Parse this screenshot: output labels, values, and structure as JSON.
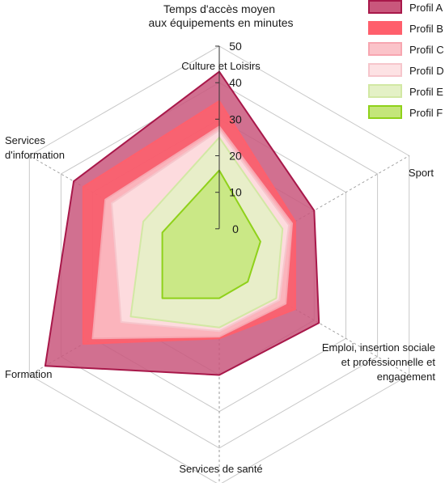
{
  "chart_data": {
    "type": "radar",
    "title_lines": [
      "Temps d'accès moyen",
      "aux équipements en minutes"
    ],
    "axes": [
      {
        "name": "Culture et Loisirs",
        "lines": [
          "Culture et Loisirs"
        ]
      },
      {
        "name": "Sport",
        "lines": [
          "Sport"
        ]
      },
      {
        "name": "Emploi, insertion sociale et professionnelle et engagement",
        "lines": [
          "Emploi, insertion sociale",
          "et professionnelle et",
          "engagement"
        ]
      },
      {
        "name": "Services de santé",
        "lines": [
          "Services de santé"
        ]
      },
      {
        "name": "Formation",
        "lines": [
          "Formation"
        ]
      },
      {
        "name": "Services d'information",
        "lines": [
          "Services",
          "d'information"
        ]
      }
    ],
    "rlim": [
      -10,
      50
    ],
    "ticks": [
      0,
      10,
      20,
      30,
      40,
      50
    ],
    "tick_labels": [
      "0",
      "10",
      "20",
      "30",
      "40",
      "50"
    ],
    "grid": true,
    "legend_position": "top-right",
    "series": [
      {
        "name": "Profil A",
        "values": [
          43,
          20,
          21.5,
          20,
          45,
          36
        ],
        "fill": "#c9577c",
        "stroke": "#a8184a"
      },
      {
        "name": "Profil B",
        "values": [
          35,
          14,
          14,
          10,
          33,
          33
        ],
        "fill": "#ff5f6c",
        "stroke": "#ff5f6c"
      },
      {
        "name": "Profil C",
        "values": [
          28,
          13,
          11,
          9.5,
          30,
          26
        ],
        "fill": "#fbc3c9",
        "stroke": "#f7a6b0"
      },
      {
        "name": "Profil D",
        "values": [
          27,
          12,
          9,
          8,
          21,
          24
        ],
        "fill": "#fde2e4",
        "stroke": "#f6c6cc"
      },
      {
        "name": "Profil E",
        "values": [
          25,
          10,
          8,
          7,
          18,
          14
        ],
        "fill": "#e4f1c6",
        "stroke": "#d2e8a4"
      },
      {
        "name": "Profil F",
        "values": [
          16,
          3,
          -1,
          -1,
          8,
          8
        ],
        "fill": "#c4e67a",
        "stroke": "#8fd11a"
      }
    ]
  }
}
